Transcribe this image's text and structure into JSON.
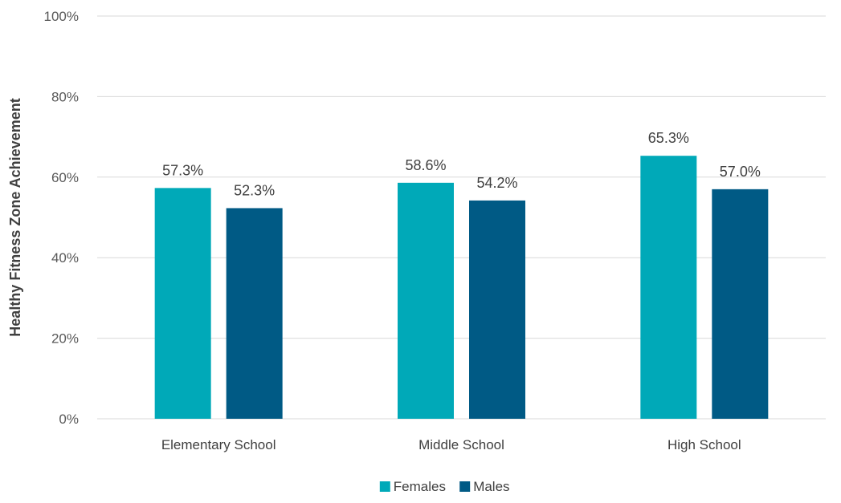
{
  "chart_data": {
    "type": "bar",
    "categories": [
      "Elementary School",
      "Middle School",
      "High School"
    ],
    "series": [
      {
        "name": "Females",
        "values": [
          57.3,
          58.6,
          65.3
        ],
        "labels": [
          "57.3%",
          "58.6%",
          "65.3%"
        ],
        "color": "#00A9B8"
      },
      {
        "name": "Males",
        "values": [
          52.3,
          54.2,
          57.0
        ],
        "labels": [
          "52.3%",
          "54.2%",
          "57.0%"
        ],
        "color": "#005A85"
      }
    ],
    "ylabel": "Healthy Fitness Zone Achievement",
    "ylim": [
      0,
      100
    ],
    "yticks": [
      0,
      20,
      40,
      60,
      80,
      100
    ],
    "ytick_labels": [
      "0%",
      "20%",
      "40%",
      "60%",
      "80%",
      "100%"
    ],
    "grid": true,
    "legend": "bottom-center"
  }
}
